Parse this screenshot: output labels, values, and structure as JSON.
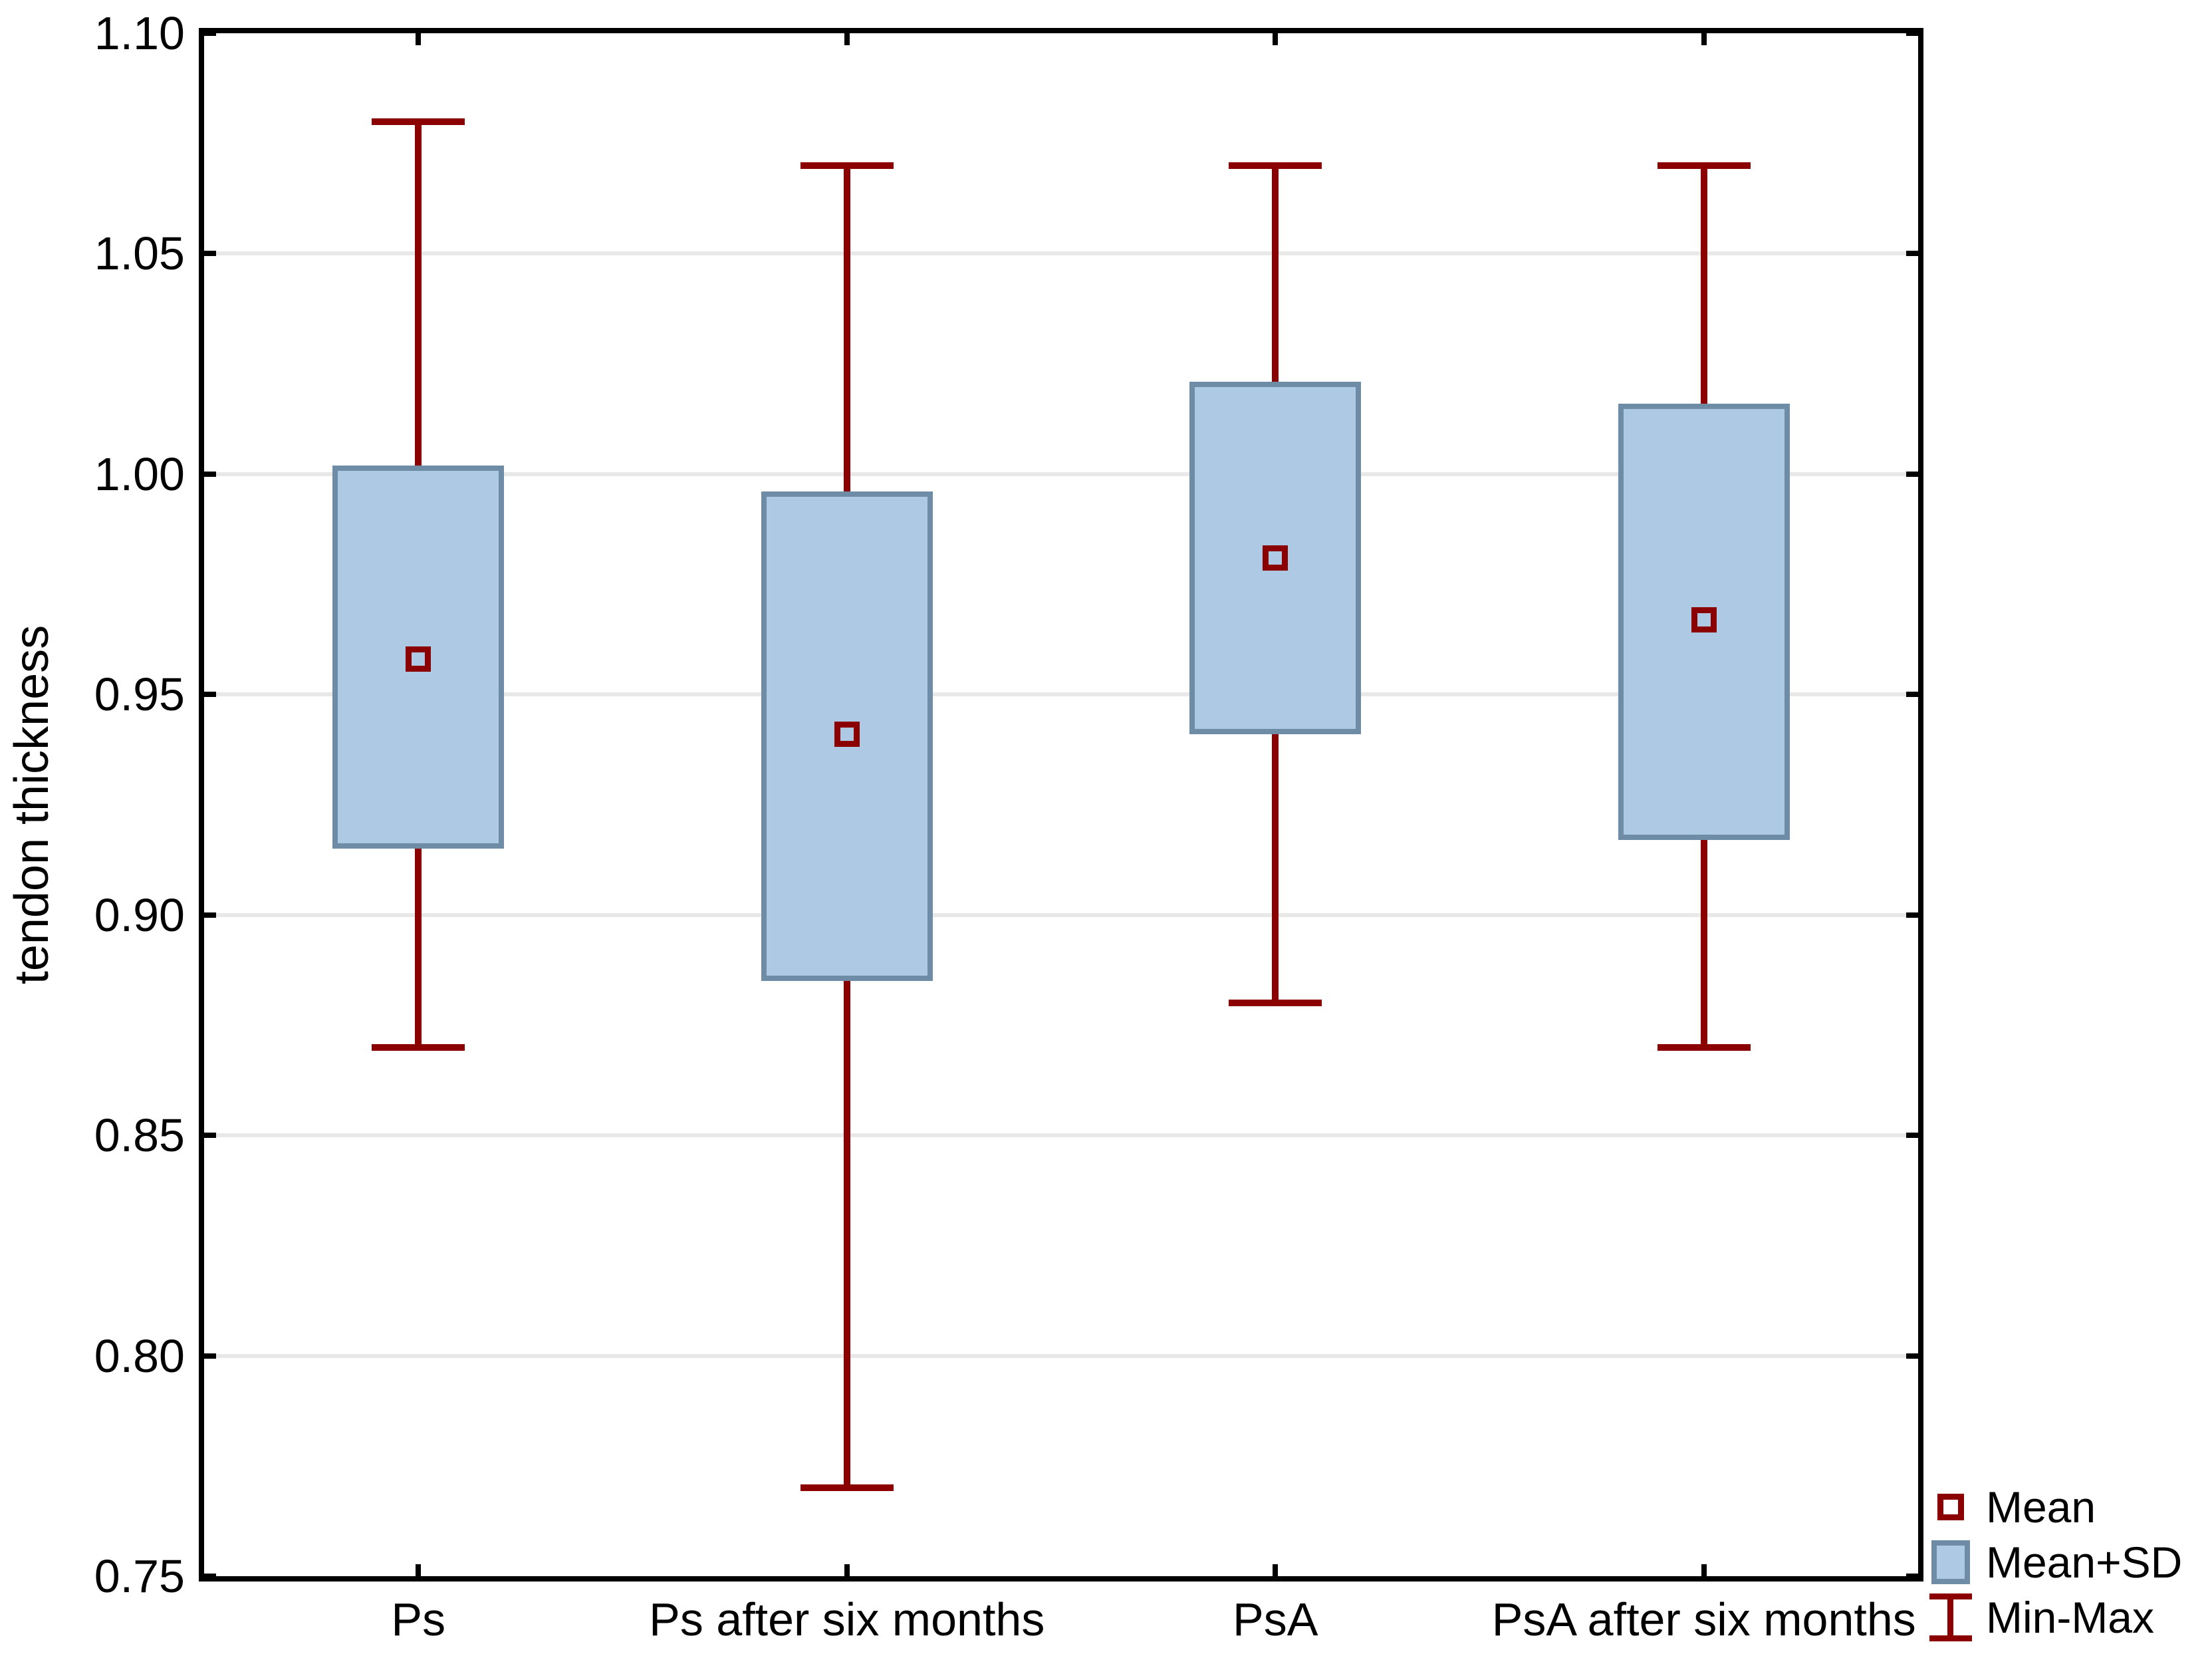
{
  "chart_data": {
    "type": "box",
    "title": "",
    "xlabel": "",
    "ylabel": "tendon thickness",
    "ylim": [
      0.75,
      1.1
    ],
    "ytick_labels": [
      "0.75",
      "0.80",
      "0.85",
      "0.90",
      "0.95",
      "1.00",
      "1.05",
      "1.10"
    ],
    "grid": true,
    "categories": [
      "Ps",
      "Ps after six months",
      "PsA",
      "PsA after six months"
    ],
    "series": [
      {
        "category": "Ps",
        "mean": 0.958,
        "mean_minus_sd": 0.915,
        "mean_plus_sd": 1.002,
        "min": 0.87,
        "max": 1.08
      },
      {
        "category": "Ps after six months",
        "mean": 0.941,
        "mean_minus_sd": 0.885,
        "mean_plus_sd": 0.996,
        "min": 0.77,
        "max": 1.07
      },
      {
        "category": "PsA",
        "mean": 0.981,
        "mean_minus_sd": 0.941,
        "mean_plus_sd": 1.021,
        "min": 0.88,
        "max": 1.07
      },
      {
        "category": "PsA after six months",
        "mean": 0.967,
        "mean_minus_sd": 0.917,
        "mean_plus_sd": 1.016,
        "min": 0.87,
        "max": 1.07
      }
    ],
    "legend": {
      "position": "bottom-right",
      "items": [
        {
          "label": "Mean",
          "marker": "open-square-icon"
        },
        {
          "label": "Mean+SD",
          "marker": "filled-box-icon"
        },
        {
          "label": "Min-Max",
          "marker": "min-max-whisker-icon"
        }
      ]
    }
  },
  "colors": {
    "whisker_and_mean": "#8b0000",
    "box_fill": "#aec9e3",
    "box_border": "#6e8ca5",
    "gridline": "#e8e8e8",
    "axis": "#000000",
    "text": "#000000",
    "background": "#ffffff"
  }
}
